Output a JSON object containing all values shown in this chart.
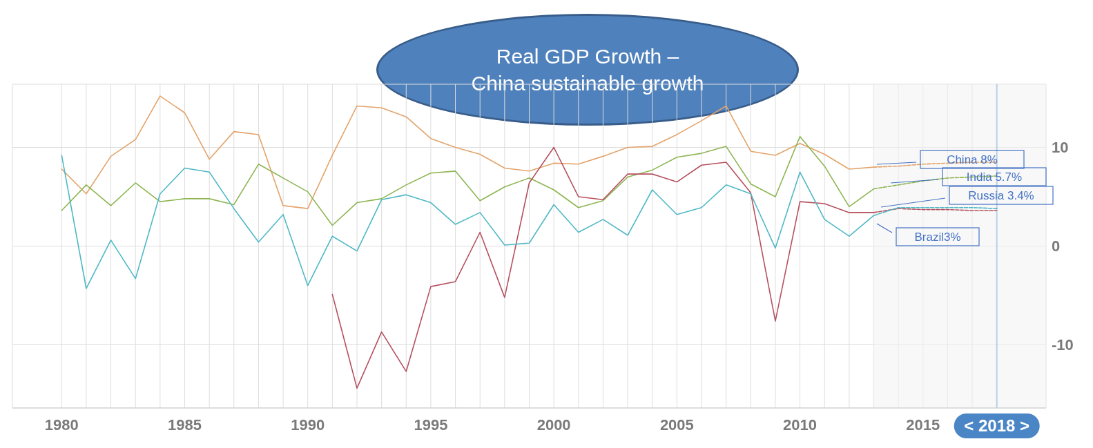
{
  "chart_data": {
    "type": "line",
    "title": "Real GDP Growth –\nChina sustainable growth",
    "x": [
      1980,
      1981,
      1982,
      1983,
      1984,
      1985,
      1986,
      1987,
      1988,
      1989,
      1990,
      1991,
      1992,
      1993,
      1994,
      1995,
      1996,
      1997,
      1998,
      1999,
      2000,
      2001,
      2002,
      2003,
      2004,
      2005,
      2006,
      2007,
      2008,
      2009,
      2010,
      2011,
      2012,
      2013,
      2014,
      2015,
      2016,
      2017,
      2018
    ],
    "series": [
      {
        "color": "#e3a36a",
        "values": [
          7.8,
          5.3,
          9.1,
          10.8,
          15.2,
          13.5,
          8.8,
          11.6,
          11.3,
          4.1,
          3.8,
          9.2,
          14.2,
          14.0,
          13.1,
          10.9,
          10.0,
          9.3,
          7.9,
          7.6,
          8.4,
          8.3,
          9.1,
          10.0,
          10.1,
          11.3,
          12.7,
          14.2,
          9.6,
          9.2,
          10.4,
          9.3,
          7.8,
          8.0,
          null,
          null,
          null,
          null,
          null
        ]
      },
      {
        "color": "#e3a36a",
        "line_style": "dashed",
        "values": [
          null,
          null,
          null,
          null,
          null,
          null,
          null,
          null,
          null,
          null,
          null,
          null,
          null,
          null,
          null,
          null,
          null,
          null,
          null,
          null,
          null,
          null,
          null,
          null,
          null,
          null,
          null,
          null,
          null,
          null,
          null,
          null,
          null,
          8.0,
          8.1,
          8.3,
          8.4,
          8.5,
          8.5
        ]
      },
      {
        "color": "#8db552",
        "values": [
          3.6,
          6.2,
          4.1,
          6.4,
          4.5,
          4.8,
          4.8,
          4.2,
          8.3,
          6.9,
          5.5,
          2.1,
          4.4,
          4.8,
          6.2,
          7.4,
          7.6,
          4.6,
          6.0,
          6.9,
          5.7,
          3.9,
          4.6,
          7.0,
          7.7,
          9.0,
          9.4,
          10.1,
          6.3,
          5.0,
          11.1,
          8.1,
          4.0,
          5.8,
          null,
          null,
          null,
          null,
          null
        ]
      },
      {
        "color": "#8db552",
        "line_style": "dashed",
        "values": [
          null,
          null,
          null,
          null,
          null,
          null,
          null,
          null,
          null,
          null,
          null,
          null,
          null,
          null,
          null,
          null,
          null,
          null,
          null,
          null,
          null,
          null,
          null,
          null,
          null,
          null,
          null,
          null,
          null,
          null,
          null,
          null,
          null,
          5.8,
          6.2,
          6.6,
          6.9,
          7.0,
          7.1
        ]
      },
      {
        "color": "#b5505e",
        "values": [
          null,
          null,
          null,
          null,
          null,
          null,
          null,
          null,
          null,
          null,
          null,
          -4.9,
          -14.4,
          -8.7,
          -12.7,
          -4.1,
          -3.6,
          1.4,
          -5.2,
          6.4,
          10.0,
          5.0,
          4.7,
          7.3,
          7.3,
          6.5,
          8.2,
          8.5,
          5.4,
          -7.6,
          4.5,
          4.3,
          3.4,
          3.4,
          null,
          null,
          null,
          null,
          null
        ]
      },
      {
        "color": "#b5505e",
        "line_style": "dashed",
        "values": [
          null,
          null,
          null,
          null,
          null,
          null,
          null,
          null,
          null,
          null,
          null,
          null,
          null,
          null,
          null,
          null,
          null,
          null,
          null,
          null,
          null,
          null,
          null,
          null,
          null,
          null,
          null,
          null,
          null,
          null,
          null,
          null,
          null,
          3.4,
          3.8,
          3.7,
          3.7,
          3.6,
          3.6
        ]
      },
      {
        "color": "#4fb8c6",
        "values": [
          9.2,
          -4.3,
          0.6,
          -3.3,
          5.3,
          7.9,
          7.5,
          3.8,
          0.4,
          3.2,
          -4.0,
          1.0,
          -0.5,
          4.7,
          5.2,
          4.4,
          2.2,
          3.4,
          0.1,
          0.3,
          4.2,
          1.4,
          2.7,
          1.1,
          5.7,
          3.2,
          3.9,
          6.2,
          5.3,
          -0.2,
          7.5,
          2.7,
          1.0,
          3.1,
          null,
          null,
          null,
          null,
          null
        ]
      },
      {
        "color": "#4fb8c6",
        "line_style": "dashed",
        "values": [
          null,
          null,
          null,
          null,
          null,
          null,
          null,
          null,
          null,
          null,
          null,
          null,
          null,
          null,
          null,
          null,
          null,
          null,
          null,
          null,
          null,
          null,
          null,
          null,
          null,
          null,
          null,
          null,
          null,
          null,
          null,
          null,
          null,
          3.1,
          3.9,
          3.9,
          3.9,
          3.9,
          3.8
        ]
      }
    ],
    "xlim": [
      1978,
      2020
    ],
    "xticks": [
      1980,
      {
        "value": 1981,
        "label": null
      },
      {
        "value": 1982,
        "label": null
      },
      {
        "value": 1983,
        "label": null
      },
      {
        "value": 1984,
        "label": null
      },
      1985,
      {
        "value": 1986,
        "label": null
      },
      {
        "value": 1987,
        "label": null
      },
      {
        "value": 1988,
        "label": null
      },
      {
        "value": 1989,
        "label": null
      },
      1990,
      {
        "value": 1991,
        "label": null
      },
      {
        "value": 1992,
        "label": null
      },
      {
        "value": 1993,
        "label": null
      },
      {
        "value": 1994,
        "label": null
      },
      1995,
      {
        "value": 1996,
        "label": null
      },
      {
        "value": 1997,
        "label": null
      },
      {
        "value": 1998,
        "label": null
      },
      {
        "value": 1999,
        "label": null
      },
      2000,
      {
        "value": 2001,
        "label": null
      },
      {
        "value": 2002,
        "label": null
      },
      {
        "value": 2003,
        "label": null
      },
      {
        "value": 2004,
        "label": null
      },
      2005,
      {
        "value": 2006,
        "label": null
      },
      {
        "value": 2007,
        "label": null
      },
      {
        "value": 2008,
        "label": null
      },
      {
        "value": 2009,
        "label": null
      },
      2010,
      {
        "value": 2011,
        "label": null
      },
      {
        "value": 2012,
        "label": null
      },
      {
        "value": 2013,
        "label": null
      },
      {
        "value": 2014,
        "label": null
      },
      2015,
      {
        "value": 2016,
        "label": null
      },
      {
        "value": 2017,
        "label": null
      }
    ],
    "ylim": [
      -16.4,
      16.4
    ],
    "yticks": [
      -10,
      0,
      10
    ],
    "grid": true,
    "bands": [
      {
        "axis": "x",
        "from": 2013,
        "to": 2020,
        "color": "#f2f2f2"
      }
    ],
    "ref_lines": [
      {
        "axis": "x",
        "value": 2018,
        "label": "< 2018 >",
        "color": "#4a86c5"
      }
    ],
    "annotations": [
      "China 8%",
      "India 5.7%",
      "Russia 3.4%",
      "Brazil3%"
    ]
  }
}
